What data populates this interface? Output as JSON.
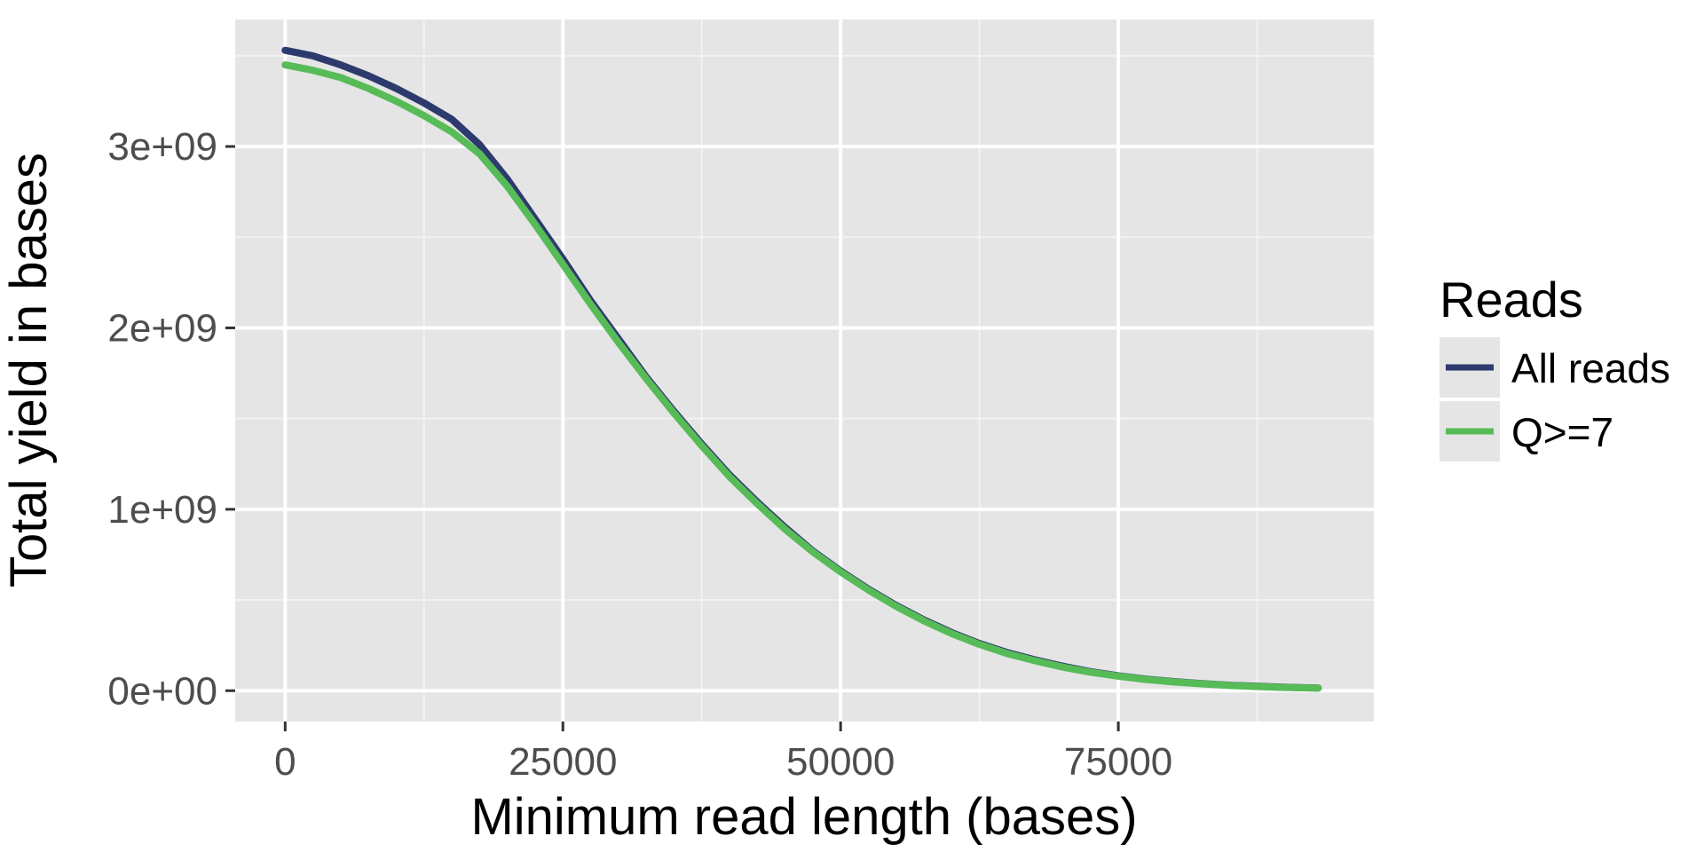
{
  "chart_data": {
    "type": "line",
    "title": "",
    "xlabel": "Minimum read length (bases)",
    "ylabel": "Total yield in bases",
    "xlim": [
      -4500,
      98000
    ],
    "ylim": [
      -170000000,
      3700000000
    ],
    "x_ticks": [
      0,
      25000,
      50000,
      75000
    ],
    "x_tick_labels": [
      "0",
      "25000",
      "50000",
      "75000"
    ],
    "x_minor_ticks": [
      12500,
      37500,
      62500,
      87500
    ],
    "y_ticks": [
      0,
      1000000000,
      2000000000,
      3000000000
    ],
    "y_tick_labels": [
      "0e+00",
      "1e+09",
      "2e+09",
      "3e+09"
    ],
    "y_minor_ticks": [
      500000000,
      1500000000,
      2500000000,
      3500000000
    ],
    "grid": true,
    "legend": {
      "title": "Reads",
      "position": "right"
    },
    "series": [
      {
        "name": "All reads",
        "color": "#2d3a6e",
        "x": [
          0,
          2500,
          5000,
          7500,
          10000,
          12500,
          15000,
          17500,
          20000,
          22500,
          25000,
          27500,
          30000,
          32500,
          35000,
          37500,
          40000,
          42500,
          45000,
          47500,
          50000,
          52500,
          55000,
          57500,
          60000,
          62500,
          65000,
          67500,
          70000,
          72500,
          75000,
          77500,
          80000,
          82500,
          85000,
          87500,
          90000,
          93000
        ],
        "values": [
          3530000000,
          3500000000,
          3450000000,
          3390000000,
          3320000000,
          3240000000,
          3150000000,
          3010000000,
          2820000000,
          2600000000,
          2380000000,
          2150000000,
          1940000000,
          1730000000,
          1540000000,
          1360000000,
          1190000000,
          1040000000,
          900000000,
          770000000,
          660000000,
          560000000,
          470000000,
          390000000,
          320000000,
          260000000,
          210000000,
          170000000,
          135000000,
          105000000,
          82000000,
          64000000,
          50000000,
          39000000,
          30000000,
          24000000,
          19000000,
          15000000
        ]
      },
      {
        "name": "Q>=7",
        "color": "#57bb57",
        "x": [
          0,
          2500,
          5000,
          7500,
          10000,
          12500,
          15000,
          17500,
          20000,
          22500,
          25000,
          27500,
          30000,
          32500,
          35000,
          37500,
          40000,
          42500,
          45000,
          47500,
          50000,
          52500,
          55000,
          57500,
          60000,
          62500,
          65000,
          67500,
          70000,
          72500,
          75000,
          77500,
          80000,
          82500,
          85000,
          87500,
          90000,
          93000
        ],
        "values": [
          3450000000,
          3420000000,
          3380000000,
          3320000000,
          3250000000,
          3170000000,
          3080000000,
          2960000000,
          2780000000,
          2570000000,
          2350000000,
          2130000000,
          1920000000,
          1720000000,
          1530000000,
          1350000000,
          1180000000,
          1030000000,
          890000000,
          765000000,
          655000000,
          555000000,
          465000000,
          385000000,
          315000000,
          255000000,
          205000000,
          165000000,
          130000000,
          102000000,
          80000000,
          62000000,
          48000000,
          38000000,
          29000000,
          23000000,
          18000000,
          14000000
        ]
      }
    ]
  }
}
